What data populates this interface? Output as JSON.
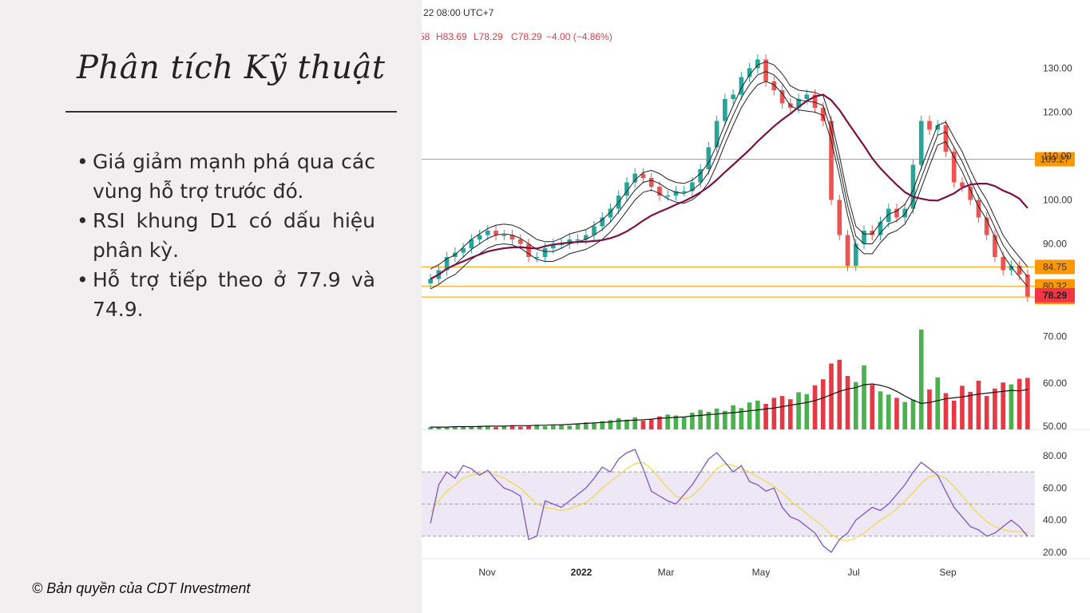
{
  "slide": {
    "title": "Phân tích Kỹ thuật",
    "bullets": [
      "Giá giảm mạnh phá qua các vùng hỗ trợ trước đó.",
      "RSI khung D1 có dấu hiệu phân kỳ.",
      "Hỗ trợ tiếp theo ở 77.9 và 74.9."
    ],
    "bullet_symbol": "•",
    "copyright": "© Bản quyền của CDT Investment"
  },
  "chart_header": {
    "date_text": "22 08:00 UTC+7",
    "open_fragment": "58",
    "high": "H83.69",
    "low": "L78.29",
    "close": "C78.29",
    "change": "−4.00 (−4.86%)"
  },
  "chart_data": [
    {
      "type": "line",
      "panel": "price",
      "y_ticks": [
        "130.00",
        "120.00",
        "110.00",
        "100.00",
        "90.00"
      ],
      "ylim": [
        75,
        135
      ],
      "x_labels": [
        "Nov",
        "2022",
        "Mar",
        "May",
        "Jul",
        "Sep"
      ],
      "levels": [
        {
          "value": 109.27,
          "label": "109.27",
          "color": "#ff9800"
        },
        {
          "value": 84.75,
          "label": "84.75",
          "color": "#ff9800"
        },
        {
          "value": 80.32,
          "label": "80.32",
          "color": "#ff9800"
        },
        {
          "value": 77.89,
          "label": "77.89",
          "color": "#ff9800"
        }
      ],
      "last_price": {
        "value": 78.29,
        "label": "78.29",
        "color": "#f23645"
      },
      "close_series": [
        82,
        84,
        87,
        88,
        89,
        91,
        92,
        93,
        92,
        92,
        91,
        90,
        87,
        87,
        89,
        90,
        90,
        91,
        91,
        92,
        94,
        96,
        98,
        101,
        104,
        106,
        105,
        103,
        101,
        101,
        102,
        102,
        104,
        107,
        112,
        118,
        123,
        124,
        128,
        130,
        132,
        127,
        125,
        122,
        121,
        123,
        124,
        121,
        118,
        100,
        92,
        85,
        90,
        93,
        92,
        95,
        98,
        96,
        98,
        108,
        118,
        116,
        117,
        111,
        104,
        103,
        100,
        96,
        92,
        87,
        84,
        85,
        83,
        78
      ],
      "colors": {
        "up": "#26a69a",
        "down": "#ef5350",
        "ma_long": "#7b1045",
        "ribbon": "#222222",
        "level": "#ff9800"
      }
    },
    {
      "type": "bar",
      "panel": "volume",
      "y_ticks": [
        "70.00",
        "60.00",
        "50.00"
      ],
      "ylim": [
        50,
        72
      ],
      "values": [
        50.5,
        50.6,
        50.4,
        50.5,
        50.7,
        50.6,
        50.8,
        50.6,
        50.5,
        50.7,
        50.9,
        50.6,
        50.8,
        51.0,
        50.7,
        50.9,
        51.1,
        50.8,
        51.2,
        51.5,
        51.3,
        51.8,
        52.0,
        52.4,
        52.1,
        52.6,
        51.9,
        52.3,
        52.8,
        53.2,
        53.0,
        52.7,
        53.6,
        54.2,
        53.8,
        54.5,
        54.0,
        55.2,
        54.6,
        55.8,
        56.2,
        55.5,
        56.8,
        57.2,
        56.5,
        58.0,
        57.6,
        59.5,
        60.8,
        64.2,
        65.0,
        61.5,
        60.2,
        63.8,
        59.6,
        58.2,
        57.5,
        56.8,
        55.9,
        56.4,
        71.5,
        58.6,
        61.2,
        57.8,
        56.2,
        59.4,
        58.1,
        60.5,
        57.2,
        58.8,
        60.1,
        59.7,
        60.9,
        61.1
      ],
      "ma_values": [
        50.5,
        50.5,
        50.5,
        50.6,
        50.6,
        50.6,
        50.6,
        50.7,
        50.7,
        50.7,
        50.8,
        50.8,
        50.8,
        50.9,
        50.9,
        51.0,
        51.0,
        51.1,
        51.2,
        51.3,
        51.4,
        51.5,
        51.6,
        51.8,
        51.9,
        52.0,
        52.1,
        52.2,
        52.4,
        52.5,
        52.6,
        52.7,
        52.9,
        53.0,
        53.2,
        53.3,
        53.5,
        53.6,
        53.8,
        54.0,
        54.2,
        54.4,
        54.6,
        54.9,
        55.2,
        55.5,
        55.8,
        56.2,
        56.8,
        57.5,
        58.2,
        58.7,
        59.0,
        59.6,
        59.8,
        59.5,
        59.0,
        58.2,
        57.2,
        56.3,
        55.6,
        55.8,
        56.2,
        56.6,
        56.8,
        57.0,
        57.3,
        57.6,
        57.8,
        58.0,
        58.2,
        58.4,
        58.3,
        58.6
      ]
    },
    {
      "type": "line",
      "panel": "rsi",
      "y_ticks": [
        "80.00",
        "60.00",
        "40.00",
        "20.00"
      ],
      "ylim": [
        16,
        88
      ],
      "bands": [
        70,
        50,
        30
      ],
      "rsi": [
        38,
        62,
        70,
        66,
        74,
        72,
        68,
        71,
        65,
        60,
        58,
        55,
        28,
        30,
        52,
        50,
        48,
        52,
        56,
        60,
        66,
        73,
        70,
        78,
        82,
        84,
        72,
        58,
        55,
        52,
        50,
        56,
        62,
        70,
        78,
        82,
        76,
        70,
        74,
        64,
        62,
        58,
        60,
        48,
        42,
        40,
        36,
        32,
        24,
        20,
        28,
        32,
        40,
        44,
        48,
        46,
        50,
        56,
        62,
        70,
        76,
        72,
        68,
        58,
        48,
        42,
        36,
        34,
        30,
        32,
        36,
        40,
        36,
        30
      ],
      "rsi_ma": [
        45,
        52,
        58,
        62,
        66,
        68,
        69,
        70,
        68,
        66,
        63,
        60,
        55,
        50,
        48,
        47,
        46,
        47,
        49,
        51,
        55,
        60,
        64,
        68,
        72,
        75,
        76,
        72,
        66,
        60,
        55,
        53,
        55,
        60,
        66,
        72,
        75,
        74,
        72,
        70,
        67,
        64,
        61,
        57,
        52,
        48,
        44,
        40,
        36,
        31,
        28,
        27,
        29,
        32,
        36,
        40,
        43,
        47,
        52,
        57,
        63,
        67,
        68,
        66,
        61,
        55,
        49,
        44,
        39,
        36,
        34,
        33,
        33,
        32
      ],
      "colors": {
        "rsi": "#7e57c2",
        "rsi_ma": "#f2d94e",
        "band_fill": "#ede7f6"
      }
    }
  ]
}
